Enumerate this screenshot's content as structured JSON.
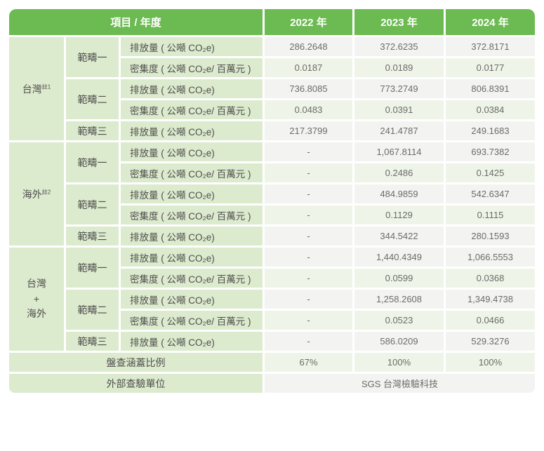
{
  "header": {
    "item_year": "項目 / 年度",
    "years": [
      "2022 年",
      "2023 年",
      "2024 年"
    ]
  },
  "sections": [
    {
      "region": "台灣",
      "note": "註1",
      "rows": [
        {
          "scope": "範疇一",
          "label": "排放量 ( 公噸 CO₂e)",
          "v": [
            "286.2648",
            "372.6235",
            "372.8171"
          ]
        },
        {
          "label": "密集度 ( 公噸 CO₂e/ 百萬元 )",
          "v": [
            "0.0187",
            "0.0189",
            "0.0177"
          ]
        },
        {
          "scope": "範疇二",
          "label": "排放量 ( 公噸 CO₂e)",
          "v": [
            "736.8085",
            "773.2749",
            "806.8391"
          ]
        },
        {
          "label": "密集度 ( 公噸 CO₂e/ 百萬元 )",
          "v": [
            "0.0483",
            "0.0391",
            "0.0384"
          ]
        },
        {
          "scope": "範疇三",
          "label": "排放量 ( 公噸 CO₂e)",
          "v": [
            "217.3799",
            "241.4787",
            "249.1683"
          ]
        }
      ]
    },
    {
      "region": "海外",
      "note": "註2",
      "rows": [
        {
          "scope": "範疇一",
          "label": "排放量 ( 公噸 CO₂e)",
          "v": [
            "-",
            "1,067.8114",
            "693.7382"
          ]
        },
        {
          "label": "密集度 ( 公噸 CO₂e/ 百萬元 )",
          "v": [
            "-",
            "0.2486",
            "0.1425"
          ]
        },
        {
          "scope": "範疇二",
          "label": "排放量 ( 公噸 CO₂e)",
          "v": [
            "-",
            "484.9859",
            "542.6347"
          ]
        },
        {
          "label": "密集度 ( 公噸 CO₂e/ 百萬元 )",
          "v": [
            "-",
            "0.1129",
            "0.1115"
          ]
        },
        {
          "scope": "範疇三",
          "label": "排放量 ( 公噸 CO₂e)",
          "v": [
            "-",
            "344.5422",
            "280.1593"
          ]
        }
      ]
    },
    {
      "region": "台灣\n+\n海外",
      "note": "",
      "rows": [
        {
          "scope": "範疇一",
          "label": "排放量 ( 公噸 CO₂e)",
          "v": [
            "-",
            "1,440.4349",
            "1,066.5553"
          ]
        },
        {
          "label": "密集度 ( 公噸 CO₂e/ 百萬元 )",
          "v": [
            "-",
            "0.0599",
            "0.0368"
          ]
        },
        {
          "scope": "範疇二",
          "label": "排放量 ( 公噸 CO₂e)",
          "v": [
            "-",
            "1,258.2608",
            "1,349.4738"
          ]
        },
        {
          "label": "密集度 ( 公噸 CO₂e/ 百萬元 )",
          "v": [
            "-",
            "0.0523",
            "0.0466"
          ]
        },
        {
          "scope": "範疇三",
          "label": "排放量 ( 公噸 CO₂e)",
          "v": [
            "-",
            "586.0209",
            "529.3276"
          ]
        }
      ]
    }
  ],
  "footer": {
    "coverage_label": "盤查涵蓋比例",
    "coverage_values": [
      "67%",
      "100%",
      "100%"
    ],
    "verifier_label": "外部查驗單位",
    "verifier_value": "SGS 台灣檢驗科技"
  },
  "colors": {
    "header_green": "#6cba52",
    "label_green": "#dceace",
    "row_gray": "#f3f3f1",
    "row_green_tint": "#eff4e8",
    "label_text": "#4f4e4c",
    "value_text": "#6b6b69"
  }
}
